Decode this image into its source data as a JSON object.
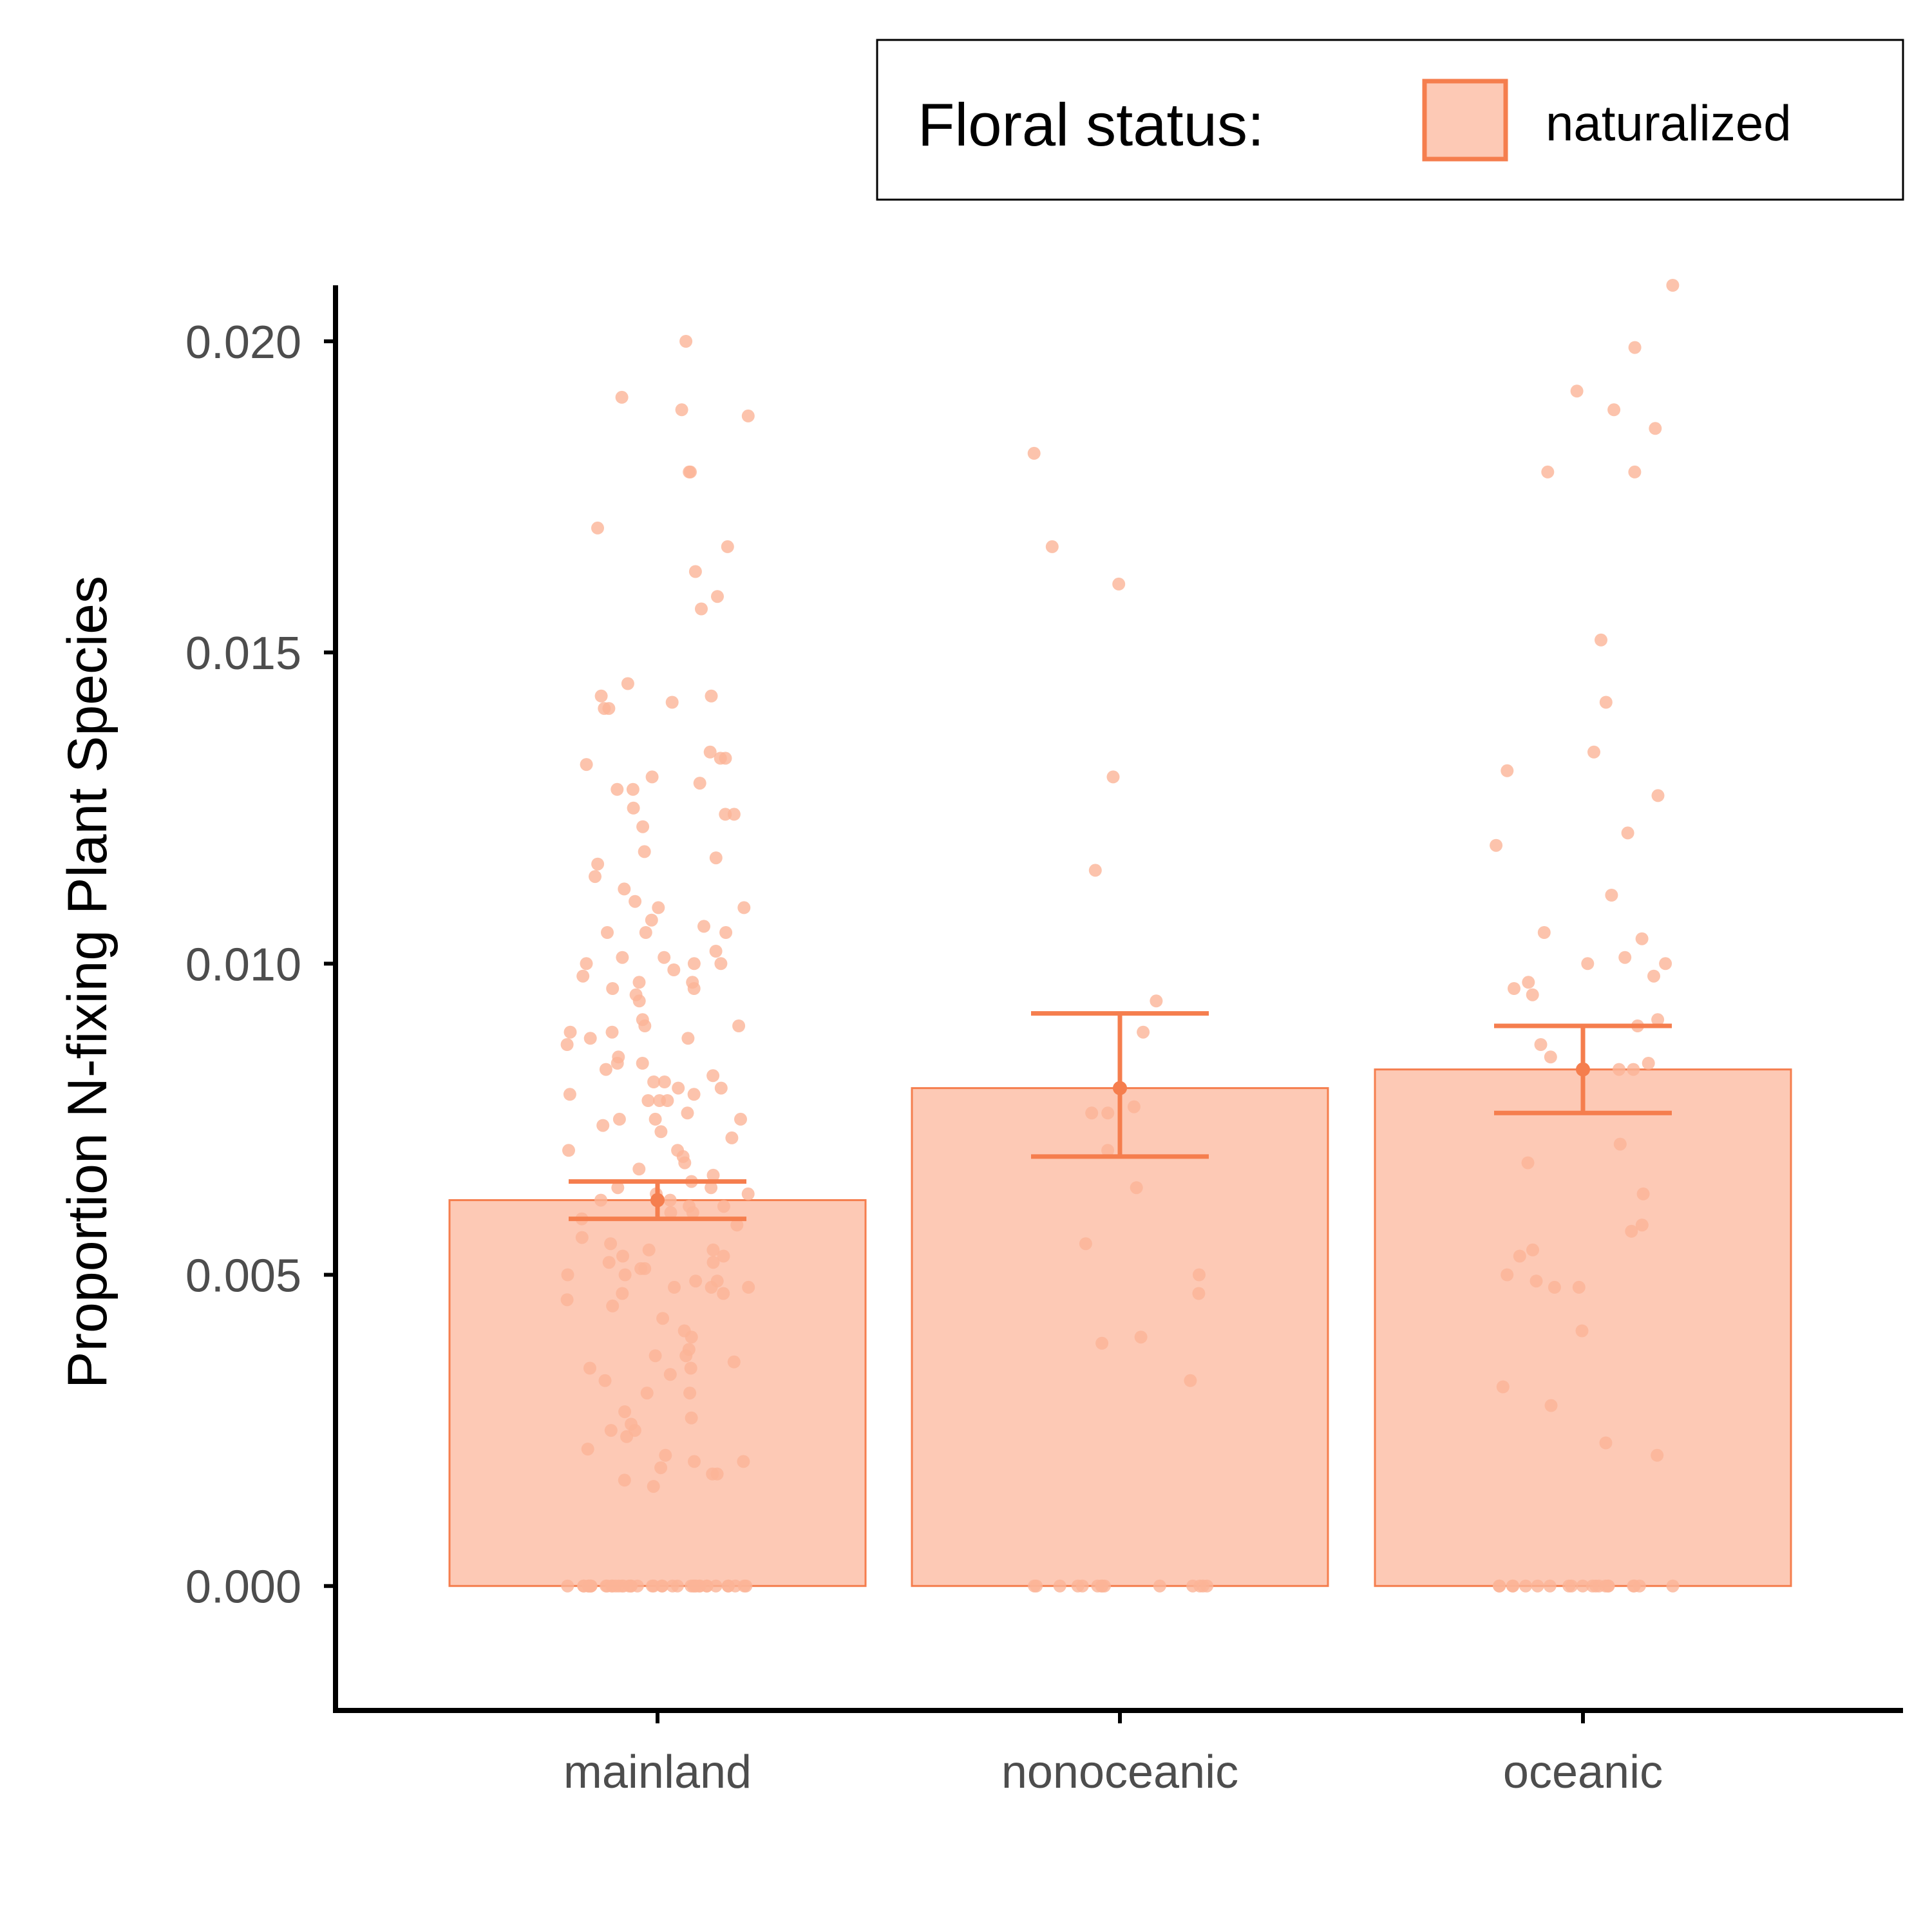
{
  "legend": {
    "title": "Floral status:",
    "entries": [
      {
        "label": "naturalized",
        "fill": "#fdc9b5",
        "stroke": "#f57e4e"
      }
    ]
  },
  "chart_data": {
    "type": "bar",
    "ylabel": "Proportion N-fixing Plant Species",
    "xlabel": "",
    "categories": [
      "mainland",
      "nonoceanic",
      "oceanic"
    ],
    "ylim": [
      -0.002,
      0.0209
    ],
    "yticks": [
      0.0,
      0.005,
      0.01,
      0.015,
      0.02
    ],
    "ytick_labels": [
      "0.000",
      "0.005",
      "0.010",
      "0.015",
      "0.020"
    ],
    "grid": false,
    "legend_position": "top-right",
    "series": [
      {
        "name": "naturalized",
        "values": [
          0.0062,
          0.008,
          0.0083
        ],
        "error_low": [
          0.0059,
          0.0069,
          0.0076
        ],
        "error_high": [
          0.0065,
          0.0092,
          0.009
        ]
      }
    ],
    "points": {
      "mainland": [
        0.02,
        0.0191,
        0.0189,
        0.0188,
        0.0179,
        0.0179,
        0.017,
        0.0167,
        0.0163,
        0.0159,
        0.0157,
        0.0145,
        0.0143,
        0.0143,
        0.0142,
        0.0141,
        0.0141,
        0.0134,
        0.0133,
        0.0133,
        0.0132,
        0.013,
        0.0129,
        0.0128,
        0.0128,
        0.0125,
        0.0124,
        0.0124,
        0.0122,
        0.0118,
        0.0117,
        0.0116,
        0.0114,
        0.0112,
        0.011,
        0.0109,
        0.0109,
        0.0107,
        0.0106,
        0.0105,
        0.0105,
        0.0105,
        0.0102,
        0.0101,
        0.0101,
        0.01,
        0.01,
        0.01,
        0.0099,
        0.0098,
        0.0097,
        0.0097,
        0.0096,
        0.0096,
        0.0095,
        0.0094,
        0.0091,
        0.009,
        0.009,
        0.0089,
        0.0089,
        0.0088,
        0.0088,
        0.0087,
        0.0085,
        0.0084,
        0.0084,
        0.0083,
        0.0082,
        0.0081,
        0.0081,
        0.008,
        0.008,
        0.0079,
        0.0079,
        0.0078,
        0.0078,
        0.0078,
        0.0076,
        0.0075,
        0.0075,
        0.0075,
        0.0074,
        0.0073,
        0.0072,
        0.007,
        0.007,
        0.0069,
        0.0068,
        0.0067,
        0.0066,
        0.0065,
        0.0064,
        0.0064,
        0.0063,
        0.0063,
        0.0062,
        0.0062,
        0.0061,
        0.0061,
        0.006,
        0.006,
        0.0059,
        0.0058,
        0.0056,
        0.0055,
        0.0054,
        0.0054,
        0.0053,
        0.0053,
        0.0052,
        0.0052,
        0.0051,
        0.0051,
        0.005,
        0.005,
        0.0049,
        0.0049,
        0.0048,
        0.0048,
        0.0048,
        0.0047,
        0.0047,
        0.0046,
        0.0045,
        0.0043,
        0.0041,
        0.004,
        0.0038,
        0.0037,
        0.0037,
        0.0036,
        0.0035,
        0.0035,
        0.0034,
        0.0033,
        0.0031,
        0.0031,
        0.0028,
        0.0027,
        0.0026,
        0.0025,
        0.0025,
        0.0024,
        0.0022,
        0.0021,
        0.002,
        0.002,
        0.0019,
        0.0018,
        0.0018,
        0.0017,
        0.0016,
        0,
        0,
        0,
        0,
        0,
        0,
        0,
        0,
        0,
        0,
        0,
        0,
        0,
        0,
        0,
        0,
        0,
        0,
        0,
        0,
        0,
        0,
        0,
        0,
        0,
        0,
        0,
        0,
        0,
        0,
        0,
        0,
        0,
        0,
        0,
        0,
        0,
        0,
        0,
        0
      ],
      "nonoceanic": [
        0.0182,
        0.0167,
        0.0161,
        0.013,
        0.0115,
        0.0094,
        0.0089,
        0.0077,
        0.0076,
        0.0076,
        0.007,
        0.0064,
        0.0055,
        0.005,
        0.0047,
        0.004,
        0.0039,
        0.0033,
        0,
        0,
        0,
        0,
        0,
        0,
        0,
        0,
        0,
        0,
        0,
        0,
        0,
        0
      ],
      "oceanic": [
        0.0209,
        0.0199,
        0.0192,
        0.0189,
        0.0186,
        0.0179,
        0.0179,
        0.0152,
        0.0142,
        0.0134,
        0.0131,
        0.0127,
        0.0121,
        0.0119,
        0.0111,
        0.0105,
        0.0104,
        0.0101,
        0.01,
        0.01,
        0.0098,
        0.0097,
        0.0096,
        0.0095,
        0.0091,
        0.009,
        0.0087,
        0.0085,
        0.0084,
        0.0083,
        0.0083,
        0.0071,
        0.0068,
        0.0063,
        0.0058,
        0.0057,
        0.0054,
        0.0053,
        0.005,
        0.0049,
        0.0048,
        0.0048,
        0.0041,
        0.0032,
        0.0029,
        0.0023,
        0.0021,
        0,
        0,
        0,
        0,
        0,
        0,
        0,
        0,
        0,
        0,
        0,
        0,
        0,
        0,
        0,
        0,
        0,
        0,
        0,
        0
      ]
    },
    "colors": {
      "bar_fill": "#fdc9b5",
      "accent": "#f57e4e",
      "point": "#fbb497",
      "axis": "#000000",
      "tick_text": "#4d4d4d"
    }
  }
}
